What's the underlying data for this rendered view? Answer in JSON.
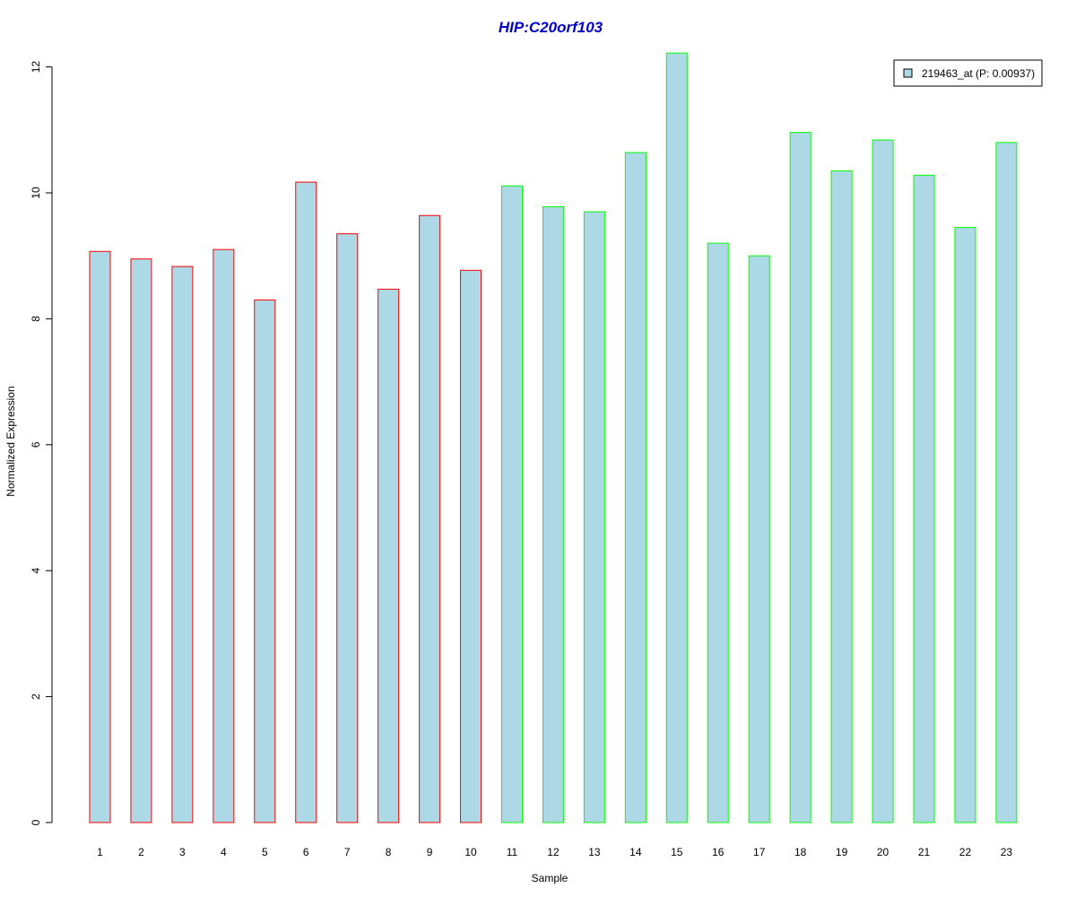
{
  "chart_data": {
    "type": "bar",
    "title": "HIP:C20orf103",
    "xlabel": "Sample",
    "ylabel": "Normalized Expression",
    "ylim": [
      0,
      12.2
    ],
    "yticks": [
      0,
      2,
      4,
      6,
      8,
      10,
      12
    ],
    "categories": [
      "1",
      "2",
      "3",
      "4",
      "5",
      "6",
      "7",
      "8",
      "9",
      "10",
      "11",
      "12",
      "13",
      "14",
      "15",
      "16",
      "17",
      "18",
      "19",
      "20",
      "21",
      "22",
      "23"
    ],
    "values": [
      9.07,
      8.95,
      8.83,
      9.1,
      8.3,
      10.17,
      9.35,
      8.47,
      9.64,
      8.77,
      10.11,
      9.78,
      9.7,
      10.64,
      12.22,
      9.2,
      9.0,
      10.96,
      10.35,
      10.84,
      10.28,
      9.45,
      10.8
    ],
    "groups": [
      "red",
      "red",
      "red",
      "red",
      "red",
      "red",
      "red",
      "red",
      "red",
      "red",
      "green",
      "green",
      "green",
      "green",
      "green",
      "green",
      "green",
      "green",
      "green",
      "green",
      "green",
      "green",
      "green"
    ],
    "legend": {
      "label": "219463_at (P: 0.00937)",
      "placement": "top-right"
    },
    "colors": {
      "bar_fill": "#add8e6",
      "group_red": "#ff0000",
      "group_green": "#00ff00",
      "title": "#0000cd"
    },
    "grid": false
  }
}
